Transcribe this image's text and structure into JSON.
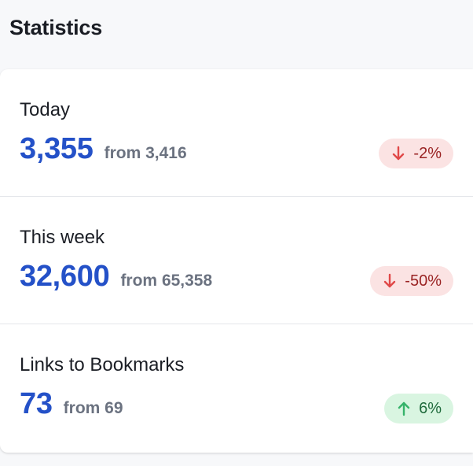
{
  "section": {
    "title": "Statistics"
  },
  "stats": [
    {
      "label": "Today",
      "value": "3,355",
      "from": "from 3,416",
      "change": "-2%",
      "trend": "down",
      "trend_icon": "arrow-down-icon"
    },
    {
      "label": "This week",
      "value": "32,600",
      "from": "from 65,358",
      "change": "-50%",
      "trend": "down",
      "trend_icon": "arrow-down-icon"
    },
    {
      "label": "Links to Bookmarks",
      "value": "73",
      "from": "from 69",
      "change": "6%",
      "trend": "up",
      "trend_icon": "arrow-up-icon"
    }
  ],
  "colors": {
    "accent_value": "#2451c8",
    "down_badge_bg": "#fbe3e3",
    "down_badge_text": "#9a2323",
    "up_badge_bg": "#d9f5e1",
    "up_badge_text": "#1f6b3c"
  }
}
